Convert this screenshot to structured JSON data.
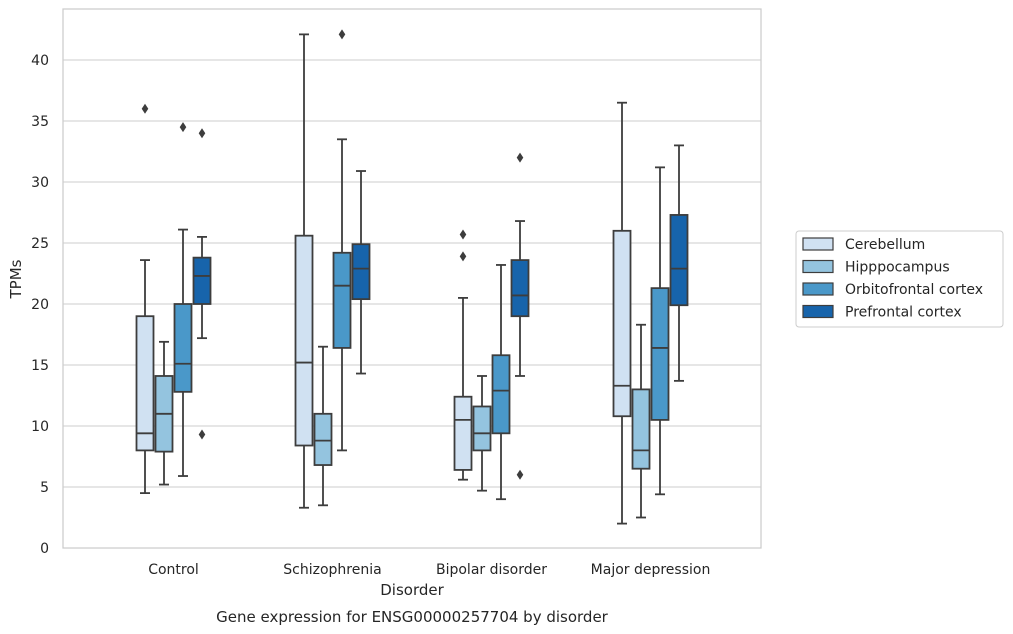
{
  "chart_data": {
    "type": "box",
    "title": "",
    "xlabel": "Disorder",
    "ylabel": "TPMs",
    "caption": "Gene expression for ENSG00000257704 by disorder",
    "ylim": [
      0,
      44
    ],
    "yticks": [
      0,
      5,
      10,
      15,
      20,
      25,
      30,
      35,
      40
    ],
    "grid": "horizontal",
    "legend_position": "right",
    "categories": [
      "Control",
      "Schizophrenia",
      "Bipolar disorder",
      "Major depression"
    ],
    "series": [
      {
        "name": "Cerebellum",
        "color": "#d0e1f2",
        "boxes": [
          {
            "whisker_low": 4.5,
            "q1": 8.0,
            "median": 9.4,
            "q3": 19.0,
            "whisker_high": 23.6,
            "outliers": [
              36.0
            ]
          },
          {
            "whisker_low": 3.3,
            "q1": 8.4,
            "median": 15.2,
            "q3": 25.6,
            "whisker_high": 42.1,
            "outliers": []
          },
          {
            "whisker_low": 5.6,
            "q1": 6.4,
            "median": 10.5,
            "q3": 12.4,
            "whisker_high": 20.5,
            "outliers": [
              23.9,
              25.7
            ]
          },
          {
            "whisker_low": 2.0,
            "q1": 10.8,
            "median": 13.3,
            "q3": 26.0,
            "whisker_high": 36.5,
            "outliers": []
          }
        ]
      },
      {
        "name": "Hipppocampus",
        "color": "#94c4df",
        "boxes": [
          {
            "whisker_low": 5.2,
            "q1": 7.9,
            "median": 11.0,
            "q3": 14.1,
            "whisker_high": 16.9,
            "outliers": []
          },
          {
            "whisker_low": 3.5,
            "q1": 6.8,
            "median": 8.8,
            "q3": 11.0,
            "whisker_high": 16.5,
            "outliers": []
          },
          {
            "whisker_low": 4.7,
            "q1": 8.0,
            "median": 9.4,
            "q3": 11.6,
            "whisker_high": 14.1,
            "outliers": []
          },
          {
            "whisker_low": 2.5,
            "q1": 6.5,
            "median": 8.0,
            "q3": 13.0,
            "whisker_high": 18.3,
            "outliers": []
          }
        ]
      },
      {
        "name": "Orbitofrontal cortex",
        "color": "#4a98c9",
        "boxes": [
          {
            "whisker_low": 5.9,
            "q1": 12.8,
            "median": 15.1,
            "q3": 20.0,
            "whisker_high": 26.1,
            "outliers": [
              34.5
            ]
          },
          {
            "whisker_low": 8.0,
            "q1": 16.4,
            "median": 21.5,
            "q3": 24.2,
            "whisker_high": 33.5,
            "outliers": [
              42.1
            ]
          },
          {
            "whisker_low": 4.0,
            "q1": 9.4,
            "median": 12.9,
            "q3": 15.8,
            "whisker_high": 23.2,
            "outliers": []
          },
          {
            "whisker_low": 4.4,
            "q1": 10.5,
            "median": 16.4,
            "q3": 21.3,
            "whisker_high": 31.2,
            "outliers": []
          }
        ]
      },
      {
        "name": "Prefrontal cortex",
        "color": "#1764ab",
        "boxes": [
          {
            "whisker_low": 17.2,
            "q1": 20.0,
            "median": 22.3,
            "q3": 23.8,
            "whisker_high": 25.5,
            "outliers": [
              9.3,
              34.0
            ]
          },
          {
            "whisker_low": 14.3,
            "q1": 20.4,
            "median": 22.9,
            "q3": 24.9,
            "whisker_high": 30.9,
            "outliers": []
          },
          {
            "whisker_low": 14.1,
            "q1": 19.0,
            "median": 20.7,
            "q3": 23.6,
            "whisker_high": 26.8,
            "outliers": [
              6.0,
              32.0
            ]
          },
          {
            "whisker_low": 13.7,
            "q1": 19.9,
            "median": 22.9,
            "q3": 27.3,
            "whisker_high": 33.0,
            "outliers": []
          }
        ]
      }
    ]
  }
}
